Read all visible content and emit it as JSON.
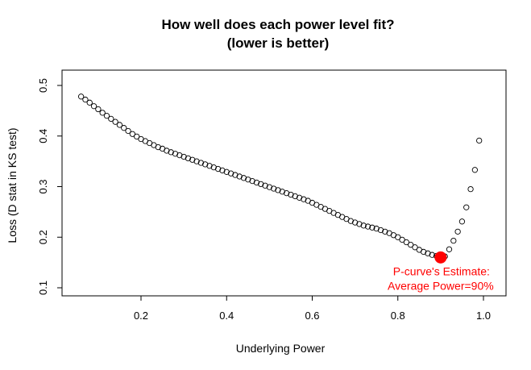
{
  "chart_data": {
    "type": "scatter",
    "title": "How well does each power level fit?",
    "subtitle": "(lower is better)",
    "xlabel": "Underlying Power",
    "ylabel": "Loss (D stat in KS test)",
    "xlim": [
      0.05,
      1.0
    ],
    "ylim": [
      0.1,
      0.5
    ],
    "x_ticks": [
      "0.2",
      "0.4",
      "0.6",
      "0.8",
      "1.0"
    ],
    "y_ticks": [
      "0.1",
      "0.2",
      "0.3",
      "0.4",
      "0.5"
    ],
    "grid": false,
    "series": [
      {
        "marker": "open-circle",
        "color": "#000000",
        "x": [
          0.06,
          0.07,
          0.08,
          0.09,
          0.1,
          0.11,
          0.12,
          0.13,
          0.14,
          0.15,
          0.16,
          0.17,
          0.18,
          0.19,
          0.2,
          0.21,
          0.22,
          0.23,
          0.24,
          0.25,
          0.26,
          0.27,
          0.28,
          0.29,
          0.3,
          0.31,
          0.32,
          0.33,
          0.34,
          0.35,
          0.36,
          0.37,
          0.38,
          0.39,
          0.4,
          0.41,
          0.42,
          0.43,
          0.44,
          0.45,
          0.46,
          0.47,
          0.48,
          0.49,
          0.5,
          0.51,
          0.52,
          0.53,
          0.54,
          0.55,
          0.56,
          0.57,
          0.58,
          0.59,
          0.6,
          0.61,
          0.62,
          0.63,
          0.64,
          0.65,
          0.66,
          0.67,
          0.68,
          0.69,
          0.7,
          0.71,
          0.72,
          0.73,
          0.74,
          0.75,
          0.76,
          0.77,
          0.78,
          0.79,
          0.8,
          0.81,
          0.82,
          0.83,
          0.84,
          0.85,
          0.86,
          0.87,
          0.88,
          0.89,
          0.9,
          0.91,
          0.92,
          0.93,
          0.94,
          0.95,
          0.96,
          0.97,
          0.98,
          0.99
        ],
        "y": [
          0.478,
          0.472,
          0.466,
          0.459,
          0.453,
          0.446,
          0.44,
          0.434,
          0.428,
          0.422,
          0.416,
          0.41,
          0.404,
          0.399,
          0.394,
          0.39,
          0.386,
          0.382,
          0.378,
          0.375,
          0.371,
          0.368,
          0.365,
          0.362,
          0.359,
          0.356,
          0.353,
          0.35,
          0.347,
          0.344,
          0.341,
          0.338,
          0.335,
          0.332,
          0.329,
          0.326,
          0.323,
          0.32,
          0.317,
          0.314,
          0.311,
          0.308,
          0.305,
          0.302,
          0.299,
          0.296,
          0.293,
          0.29,
          0.287,
          0.284,
          0.281,
          0.278,
          0.275,
          0.272,
          0.268,
          0.264,
          0.26,
          0.256,
          0.252,
          0.248,
          0.244,
          0.24,
          0.236,
          0.232,
          0.229,
          0.226,
          0.223,
          0.221,
          0.219,
          0.217,
          0.214,
          0.211,
          0.208,
          0.204,
          0.2,
          0.195,
          0.19,
          0.185,
          0.18,
          0.175,
          0.171,
          0.168,
          0.165,
          0.163,
          0.16,
          0.162,
          0.176,
          0.193,
          0.211,
          0.231,
          0.259,
          0.295,
          0.333,
          0.391
        ]
      }
    ],
    "highlight": {
      "x": 0.9,
      "y": 0.16,
      "color": "#ff0000",
      "label_line1": "P-curve's Estimate:",
      "label_line2": "Average Power=90%"
    }
  }
}
